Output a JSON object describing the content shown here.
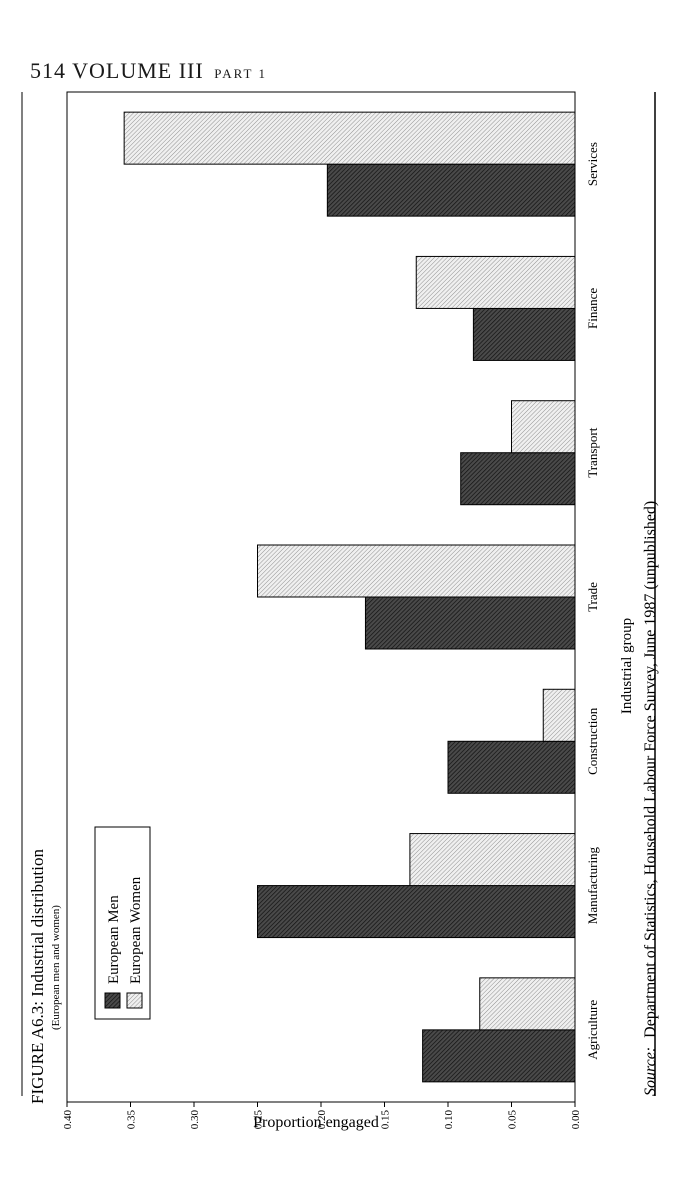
{
  "page": {
    "running_head": "514 VOLUME III",
    "running_head_part": "PART 1"
  },
  "chart_data": {
    "type": "bar",
    "orientation": "rotated-90",
    "title": "FIGURE A6.3: Industrial distribution",
    "subtitle": "(European men and women)",
    "xlabel": "Industrial group",
    "ylabel": "Proportion engaged",
    "categories": [
      "Agriculture",
      "Manufacturing",
      "Construction",
      "Trade",
      "Transport",
      "Finance",
      "Services"
    ],
    "series": [
      {
        "name": "European Men",
        "values": [
          0.12,
          0.25,
          0.1,
          0.165,
          0.09,
          0.08,
          0.195
        ],
        "pattern": "dark-hatch"
      },
      {
        "name": "European Women",
        "values": [
          0.075,
          0.13,
          0.025,
          0.25,
          0.05,
          0.125,
          0.355
        ],
        "pattern": "light-hatch"
      }
    ],
    "ylim": [
      0,
      0.4
    ],
    "yticks": [
      "0.00",
      "0.05",
      "0.10",
      "0.15",
      "0.20",
      "0.25",
      "0.30",
      "0.35",
      "0.40"
    ],
    "grid": false,
    "legend_position": "top-left",
    "source_label": "Source:",
    "source_text": "Department of Statistics, Household Labour Force Survey, June 1987 (unpublished)"
  }
}
